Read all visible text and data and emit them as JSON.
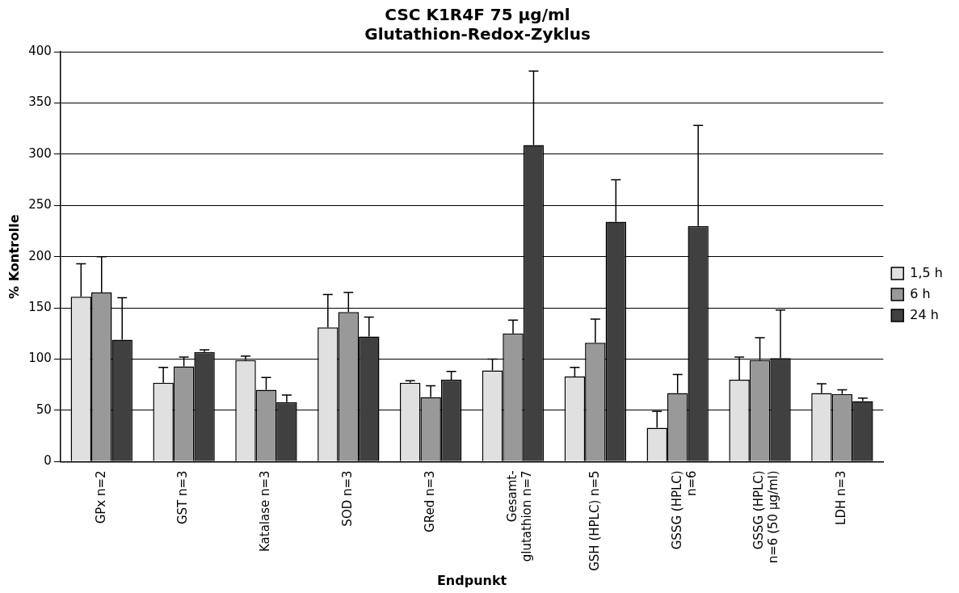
{
  "chart_data": {
    "type": "bar",
    "title": "CSC K1R4F 75 µg/ml\nGlutathion-Redox-Zyklus",
    "xlabel": "Endpunkt",
    "ylabel": "% Kontrolle",
    "categories": [
      "GPx n=2",
      "GST n=3",
      "Katalase n=3",
      "SOD n=3",
      "GRed n=3",
      "Gesamt-\nglutathion n=7",
      "GSH (HPLC) n=5",
      "GSSG (HPLC)\nn=6",
      "GSSG (HPLC)\nn=6 (50 µg/ml)",
      "LDH n=3"
    ],
    "series": [
      {
        "name": "1,5 h",
        "color": "#e0e0e0",
        "values": [
          161,
          77,
          99,
          131,
          77,
          89,
          83,
          33,
          80,
          67
        ],
        "errors": [
          [
            161,
            193
          ],
          [
            77,
            92
          ],
          [
            99,
            103
          ],
          [
            131,
            163
          ],
          [
            77,
            79
          ],
          [
            89,
            100
          ],
          [
            83,
            92
          ],
          [
            33,
            49
          ],
          [
            80,
            102
          ],
          [
            67,
            76
          ]
        ]
      },
      {
        "name": "6 h",
        "color": "#999999",
        "values": [
          165,
          93,
          70,
          146,
          63,
          125,
          116,
          67,
          99,
          66
        ],
        "errors": [
          [
            165,
            200
          ],
          [
            93,
            102
          ],
          [
            70,
            82
          ],
          [
            146,
            165
          ],
          [
            63,
            74
          ],
          [
            125,
            138
          ],
          [
            116,
            139
          ],
          [
            67,
            85
          ],
          [
            99,
            121
          ],
          [
            66,
            70
          ]
        ]
      },
      {
        "name": "24 h",
        "color": "#404040",
        "values": [
          119,
          107,
          58,
          122,
          80,
          309,
          234,
          230,
          101,
          59
        ],
        "errors": [
          [
            119,
            160
          ],
          [
            107,
            109
          ],
          [
            58,
            65
          ],
          [
            122,
            141
          ],
          [
            80,
            88
          ],
          [
            309,
            381
          ],
          [
            234,
            275
          ],
          [
            230,
            328
          ],
          [
            101,
            148
          ],
          [
            59,
            62
          ]
        ]
      }
    ],
    "ylim": [
      0,
      400
    ],
    "yticks": [
      0,
      50,
      100,
      150,
      200,
      250,
      300,
      350,
      400
    ],
    "grid": "y",
    "legend": "right"
  }
}
